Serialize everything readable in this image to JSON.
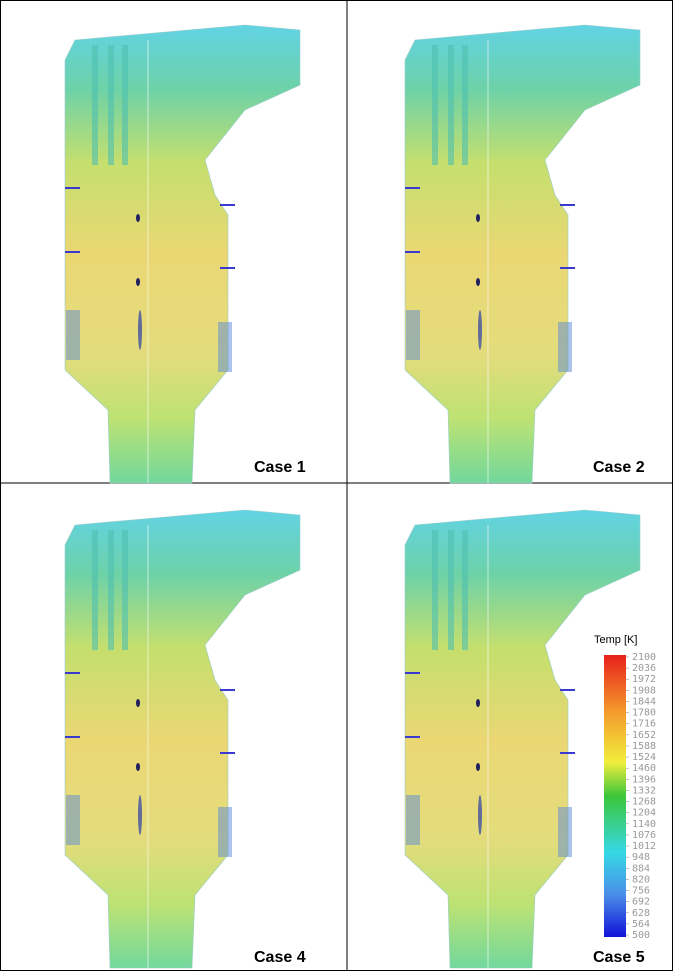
{
  "panels": [
    {
      "label": "Case 1"
    },
    {
      "label": "Case 2"
    },
    {
      "label": "Case 4"
    },
    {
      "label": "Case 5"
    }
  ],
  "colorbar": {
    "title": "Temp [K]",
    "range": [
      500,
      2100
    ],
    "ticks": [
      2100,
      2036,
      1972,
      1908,
      1844,
      1780,
      1716,
      1652,
      1588,
      1524,
      1460,
      1396,
      1332,
      1268,
      1204,
      1140,
      1076,
      1012,
      948,
      884,
      820,
      756,
      692,
      628,
      564,
      500
    ]
  }
}
